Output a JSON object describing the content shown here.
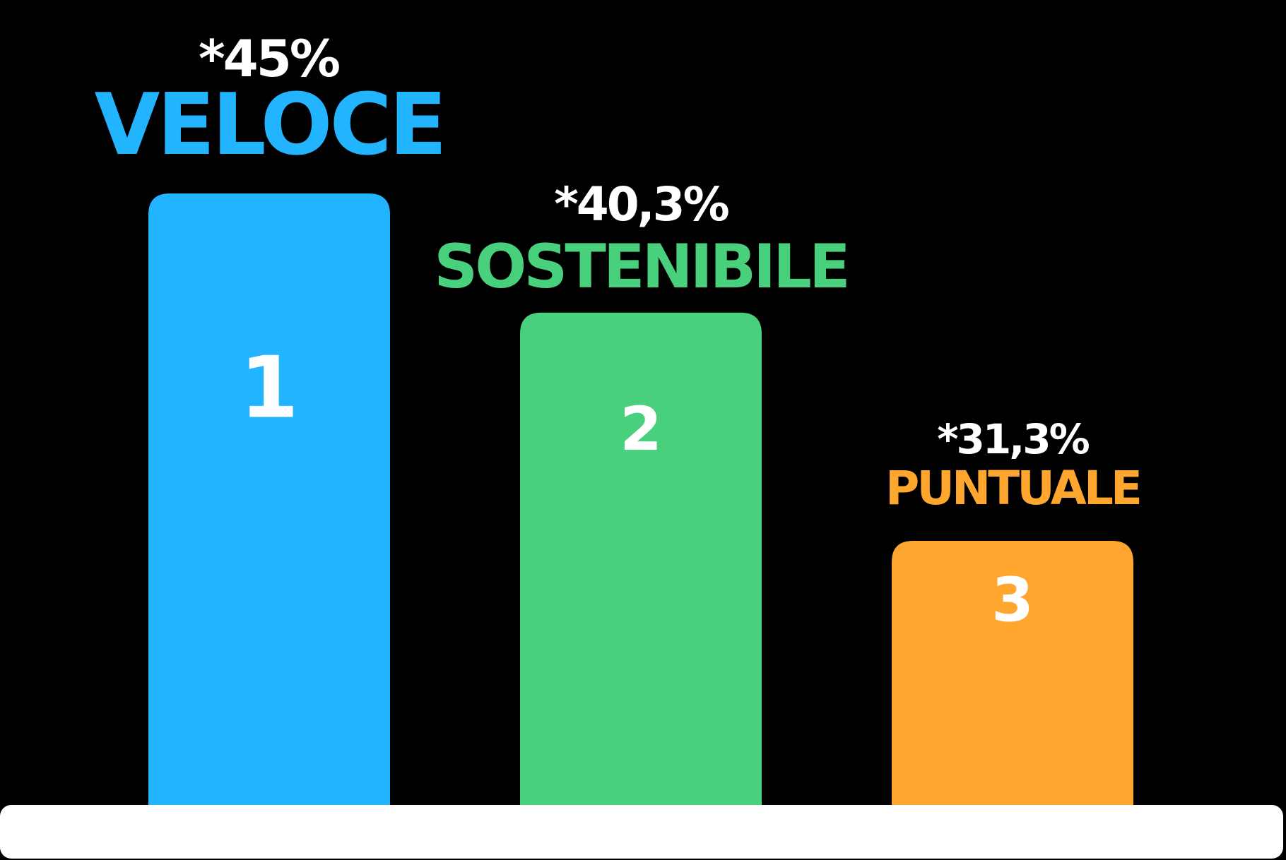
{
  "chart_data": {
    "type": "bar",
    "categories": [
      "VELOCE",
      "SOSTENIBILE",
      "PUNTUALE"
    ],
    "values": [
      45,
      40.3,
      31.3
    ],
    "value_labels": [
      "*45%",
      "*40,3%",
      "*31,3%"
    ],
    "ranks": [
      "1",
      "2",
      "3"
    ],
    "colors": [
      "#22B4FF",
      "#48D07C",
      "#FFA62E"
    ],
    "baseline_color": "#FFFFFF",
    "background": "#000000",
    "title": "",
    "xlabel": "",
    "ylabel": "",
    "ylim": [
      0,
      50
    ],
    "grid": false,
    "legend": "none"
  }
}
